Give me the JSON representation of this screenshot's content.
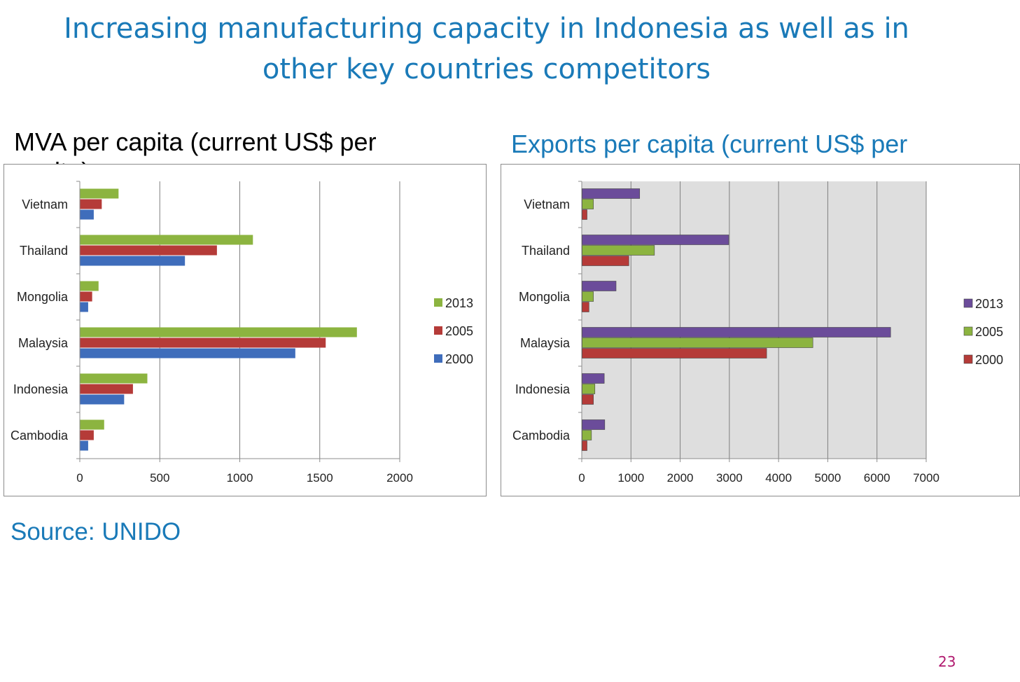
{
  "title": {
    "line1": "Increasing manufacturing capacity in Indonesia as well as in",
    "line2": "other key countries competitors"
  },
  "source": "Source: UNIDO",
  "page_number": "23",
  "colors": {
    "title": "#1a7ab8",
    "green": "#8cb440",
    "red": "#b53b38",
    "blue": "#3f6dbb",
    "purple": "#6b4c9a",
    "plot_bg": "#dedede",
    "grid": "#7f7f7f"
  },
  "chart_data": [
    {
      "type": "bar",
      "orientation": "horizontal",
      "subtitle_lines": [
        "MVA per capita (current US$ per",
        "capita)"
      ],
      "categories": [
        "Vietnam",
        "Thailand",
        "Mongolia",
        "Malaysia",
        "Indonesia",
        "Cambodia"
      ],
      "series": [
        {
          "name": "2013",
          "color": "#8cb440",
          "values": [
            240,
            1080,
            115,
            1730,
            420,
            150
          ]
        },
        {
          "name": "2005",
          "color": "#b53b38",
          "values": [
            135,
            855,
            75,
            1535,
            330,
            85
          ]
        },
        {
          "name": "2000",
          "color": "#3f6dbb",
          "values": [
            85,
            655,
            50,
            1345,
            275,
            50
          ]
        }
      ],
      "x_ticks": [
        "0",
        "500",
        "1000",
        "1500",
        "2000"
      ],
      "xlim": [
        0,
        2000
      ],
      "legend": [
        "2013",
        "2005",
        "2000"
      ],
      "legend_position": "right",
      "grid": true
    },
    {
      "type": "bar",
      "orientation": "horizontal",
      "subtitle_lines": [
        "Exports per capita (current US$ per"
      ],
      "categories": [
        "Vietnam",
        "Thailand",
        "Mongolia",
        "Malaysia",
        "Indonesia",
        "Cambodia"
      ],
      "series": [
        {
          "name": "2013",
          "color": "#6b4c9a",
          "values": [
            1170,
            2980,
            690,
            6270,
            450,
            460
          ]
        },
        {
          "name": "2005",
          "color": "#8cb440",
          "values": [
            230,
            1470,
            230,
            4690,
            260,
            190
          ]
        },
        {
          "name": "2000",
          "color": "#b53b38",
          "values": [
            100,
            950,
            140,
            3750,
            230,
            100
          ]
        }
      ],
      "x_ticks": [
        "0",
        "1000",
        "2000",
        "3000",
        "4000",
        "5000",
        "6000",
        "7000"
      ],
      "xlim": [
        0,
        7000
      ],
      "legend": [
        "2013",
        "2005",
        "2000"
      ],
      "legend_position": "right",
      "grid": true,
      "plot_background": "#dedede"
    }
  ]
}
